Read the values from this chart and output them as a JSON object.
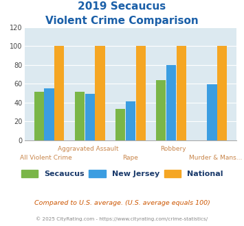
{
  "title_line1": "2019 Secaucus",
  "title_line2": "Violent Crime Comparison",
  "categories": [
    "All Violent Crime",
    "Aggravated Assault",
    "Rape",
    "Robbery",
    "Murder & Mans..."
  ],
  "cat_top": [
    "",
    "Aggravated Assault",
    "",
    "Robbery",
    ""
  ],
  "cat_bot": [
    "All Violent Crime",
    "",
    "Rape",
    "",
    "Murder & Mans..."
  ],
  "secaucus": [
    51,
    51,
    33,
    64,
    0
  ],
  "new_jersey": [
    55,
    49,
    41,
    80,
    59
  ],
  "national": [
    100,
    100,
    100,
    100,
    100
  ],
  "color_secaucus": "#7ab648",
  "color_nj": "#3b9de1",
  "color_national": "#f5a623",
  "ylim": [
    0,
    120
  ],
  "yticks": [
    0,
    20,
    40,
    60,
    80,
    100,
    120
  ],
  "bg_color": "#dce9f0",
  "title_color": "#1a5fa8",
  "xlabel_color": "#c8854a",
  "legend_label_color": "#1a3a6b",
  "note_text": "Compared to U.S. average. (U.S. average equals 100)",
  "note_color": "#cc5500",
  "footer_text": "© 2025 CityRating.com - https://www.cityrating.com/crime-statistics/",
  "footer_color": "#888888"
}
